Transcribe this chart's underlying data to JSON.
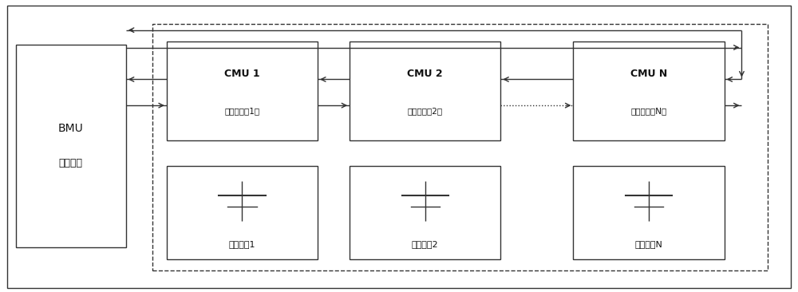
{
  "bg_color": "#ffffff",
  "line_color": "#333333",
  "text_color": "#111111",
  "bmu_label1": "BMU",
  "bmu_label2": "主控制器",
  "cmu1_label1": "CMU 1",
  "cmu1_label2": "（从控制剸1）",
  "cmu2_label1": "CMU 2",
  "cmu2_label2": "（从控制剸2）",
  "cmun_label1": "CMU N",
  "cmun_label2": "（从控制器N）",
  "bat1_label": "电池模的1",
  "bat2_label": "电池模的2",
  "batn_label": "电池模的N",
  "figsize": [
    10.0,
    3.66
  ],
  "dpi": 100,
  "xlim": [
    0,
    274
  ],
  "ylim": [
    0,
    100
  ]
}
